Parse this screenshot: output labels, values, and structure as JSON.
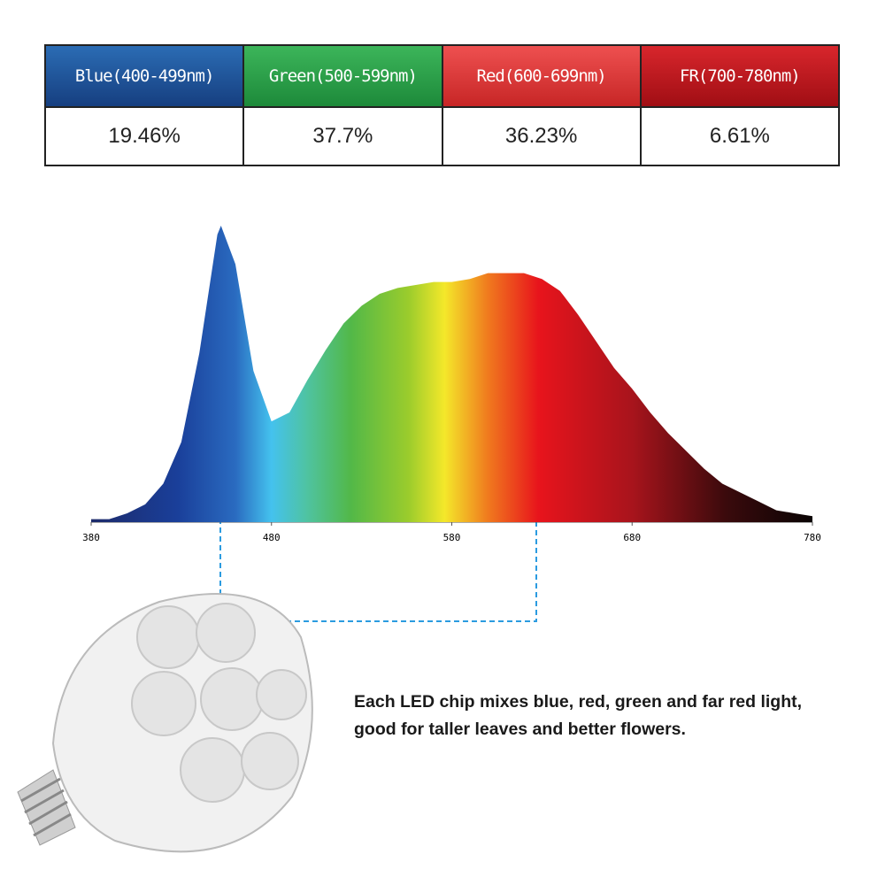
{
  "table": {
    "headers": [
      "Blue(400-499nm)",
      "Green(500-599nm)",
      "Red(600-699nm)",
      "FR(700-780nm)"
    ],
    "rows": [
      [
        "19.46%",
        "37.7%",
        "36.23%",
        "6.61%"
      ]
    ]
  },
  "chart_data": {
    "type": "area",
    "x": [
      380,
      390,
      400,
      410,
      420,
      430,
      440,
      450,
      452,
      460,
      470,
      480,
      490,
      500,
      510,
      520,
      530,
      540,
      550,
      560,
      570,
      580,
      590,
      600,
      610,
      620,
      630,
      640,
      650,
      660,
      670,
      680,
      690,
      700,
      710,
      720,
      730,
      740,
      750,
      760,
      770,
      780
    ],
    "values": [
      0.01,
      0.01,
      0.03,
      0.06,
      0.13,
      0.27,
      0.57,
      0.97,
      1.0,
      0.87,
      0.51,
      0.34,
      0.37,
      0.48,
      0.58,
      0.67,
      0.73,
      0.77,
      0.79,
      0.8,
      0.81,
      0.81,
      0.82,
      0.84,
      0.84,
      0.84,
      0.82,
      0.78,
      0.7,
      0.61,
      0.52,
      0.45,
      0.37,
      0.3,
      0.24,
      0.18,
      0.13,
      0.1,
      0.07,
      0.04,
      0.03,
      0.02
    ],
    "xlim": [
      380,
      780
    ],
    "xticks": [
      380,
      480,
      580,
      680,
      780
    ],
    "ylim": [
      0,
      1
    ]
  },
  "caption": "Each LED chip mixes blue, red, green and far red light, good for taller leaves and better flowers."
}
